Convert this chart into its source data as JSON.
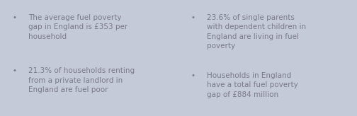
{
  "bg_left": "#c5cad8",
  "bg_right": "#cdd3e2",
  "text_color": "#7a7a8a",
  "bullet": "•",
  "left_bullets": [
    "The average fuel poverty\ngap in England is £353 per\nhousehold",
    "21.3% of households renting\nfrom a private landlord in\nEngland are fuel poor"
  ],
  "right_bullets": [
    "23.6% of single parents\nwith dependent children in\nEngland are living in fuel\npoverty",
    "Households in England\nhave a total fuel poverty\ngap of £884 million"
  ],
  "font_size": 7.5,
  "figwidth": 5.04,
  "figheight": 1.64,
  "dpi": 100
}
